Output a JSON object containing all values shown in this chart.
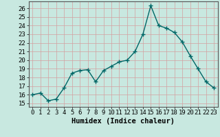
{
  "x": [
    0,
    1,
    2,
    3,
    4,
    5,
    6,
    7,
    8,
    9,
    10,
    11,
    12,
    13,
    14,
    15,
    16,
    17,
    18,
    19,
    20,
    21,
    22,
    23
  ],
  "y": [
    16.0,
    16.2,
    15.3,
    15.5,
    16.8,
    18.5,
    18.8,
    18.9,
    17.5,
    18.8,
    19.3,
    19.8,
    20.0,
    21.0,
    23.0,
    26.3,
    24.0,
    23.7,
    23.2,
    22.1,
    20.5,
    19.0,
    17.5,
    16.8
  ],
  "line_color": "#006666",
  "marker": "+",
  "marker_size": 4,
  "background_color": "#c8e8e0",
  "grid_color": "#d4a0a0",
  "xlabel": "Humidex (Indice chaleur)",
  "ylabel_ticks": [
    15,
    16,
    17,
    18,
    19,
    20,
    21,
    22,
    23,
    24,
    25,
    26
  ],
  "ylim": [
    14.6,
    26.8
  ],
  "xlim": [
    -0.5,
    23.5
  ],
  "xlabel_fontsize": 7.5,
  "tick_fontsize": 6.5,
  "line_width": 1.0,
  "marker_size_val": 4
}
